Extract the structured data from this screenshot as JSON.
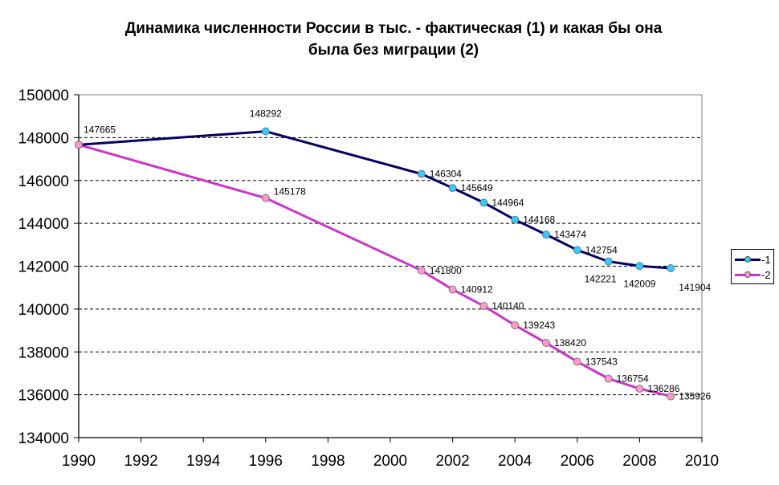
{
  "title": {
    "line1": "Динамика численности России в тыс. - фактическая (1) и какая бы она",
    "line2": "была без миграции (2)"
  },
  "colors": {
    "series1_line": "#000066",
    "series1_marker": "#33CCFF",
    "series2_line": "#CC33CC",
    "series2_marker": "#FF99CC",
    "grid": "#000000",
    "axis": "#000000"
  },
  "legend": {
    "items": [
      {
        "label": "-1"
      },
      {
        "label": "-2"
      }
    ]
  },
  "chart_data": {
    "type": "line",
    "title": "Динамика численности России в тыс. - фактическая (1) и какая бы она была без миграции (2)",
    "xlabel": "",
    "ylabel": "",
    "xlim": [
      1990,
      2010
    ],
    "ylim": [
      134000,
      150000
    ],
    "x_ticks": [
      "1990",
      "1992",
      "1994",
      "1996",
      "1998",
      "2000",
      "2002",
      "2004",
      "2006",
      "2008",
      "2010"
    ],
    "y_ticks": [
      "134000",
      "136000",
      "138000",
      "140000",
      "142000",
      "144000",
      "146000",
      "148000",
      "150000"
    ],
    "grid": "horizontal dashed",
    "legend_position": "right",
    "series": [
      {
        "name": "-1",
        "x": [
          1990,
          1996,
          2001,
          2002,
          2003,
          2004,
          2005,
          2006,
          2007,
          2008,
          2009
        ],
        "values": [
          147665,
          148292,
          146304,
          145649,
          144964,
          144168,
          143474,
          142754,
          142221,
          142009,
          141904
        ]
      },
      {
        "name": "-2",
        "x": [
          1990,
          1996,
          2001,
          2002,
          2003,
          2004,
          2005,
          2006,
          2007,
          2008,
          2009
        ],
        "values": [
          147665,
          145178,
          141800,
          140912,
          140140,
          139243,
          138420,
          137543,
          136754,
          136286,
          135926
        ]
      }
    ]
  }
}
